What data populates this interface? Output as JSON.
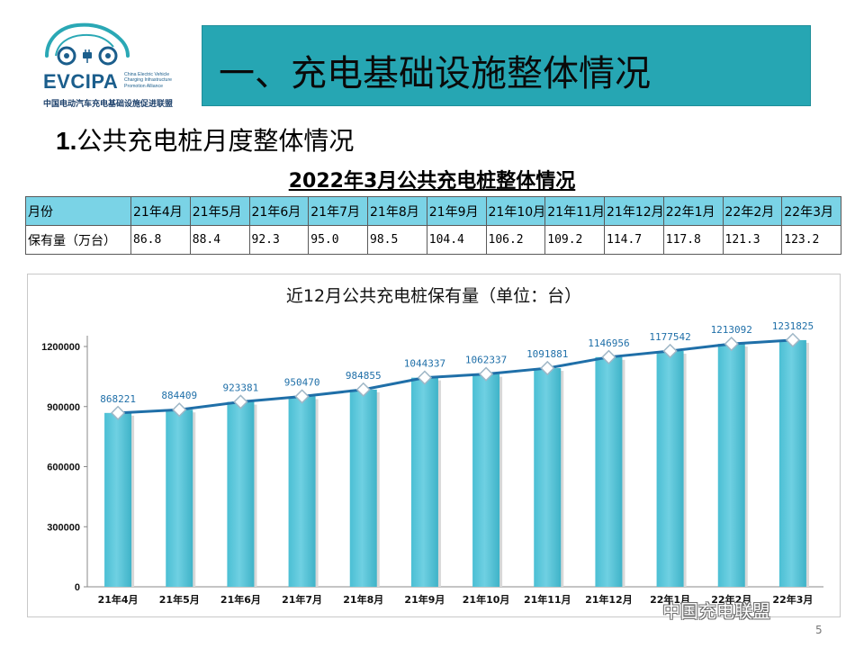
{
  "logo": {
    "name": "EVCIPA",
    "sub": "China Electric Vehicle Charging Infrastructure Promotion Alliance",
    "cn": "中国电动汽车充电基础设施促进联盟"
  },
  "header": {
    "title": "一、充电基础设施整体情况"
  },
  "section": {
    "number": "1.",
    "title": "公共充电桩月度整体情况"
  },
  "table": {
    "title": "2022年3月公共充电桩整体情况",
    "row1_label": "月份",
    "row2_label": "保有量（万台）",
    "months": [
      "21年4月",
      "21年5月",
      "21年6月",
      "21年7月",
      "21年8月",
      "21年9月",
      "21年10月",
      "21年11月",
      "21年12月",
      "22年1月",
      "22年2月",
      "22年3月"
    ],
    "values": [
      "86.8",
      "88.4",
      "92.3",
      "95.0",
      "98.5",
      "104.4",
      "106.2",
      "109.2",
      "114.7",
      "117.8",
      "121.3",
      "123.2"
    ]
  },
  "chart_data": {
    "type": "bar",
    "title": "近12月公共充电桩保有量（单位：台）",
    "categories": [
      "21年4月",
      "21年5月",
      "21年6月",
      "21年7月",
      "21年8月",
      "21年9月",
      "21年10月",
      "21年11月",
      "21年12月",
      "22年1月",
      "22年2月",
      "22年3月"
    ],
    "values": [
      868221,
      884409,
      923381,
      950470,
      984855,
      1044337,
      1062337,
      1091881,
      1146956,
      1177542,
      1213092,
      1231825
    ],
    "overlay": "line",
    "yticks": [
      0,
      300000,
      600000,
      900000,
      1200000
    ],
    "ylim": [
      0,
      1200000
    ],
    "grid": false,
    "bar_color": "#6fd0e2",
    "line_color": "#1f6fa8"
  },
  "watermark": "中国充电联盟",
  "page_number": "5"
}
